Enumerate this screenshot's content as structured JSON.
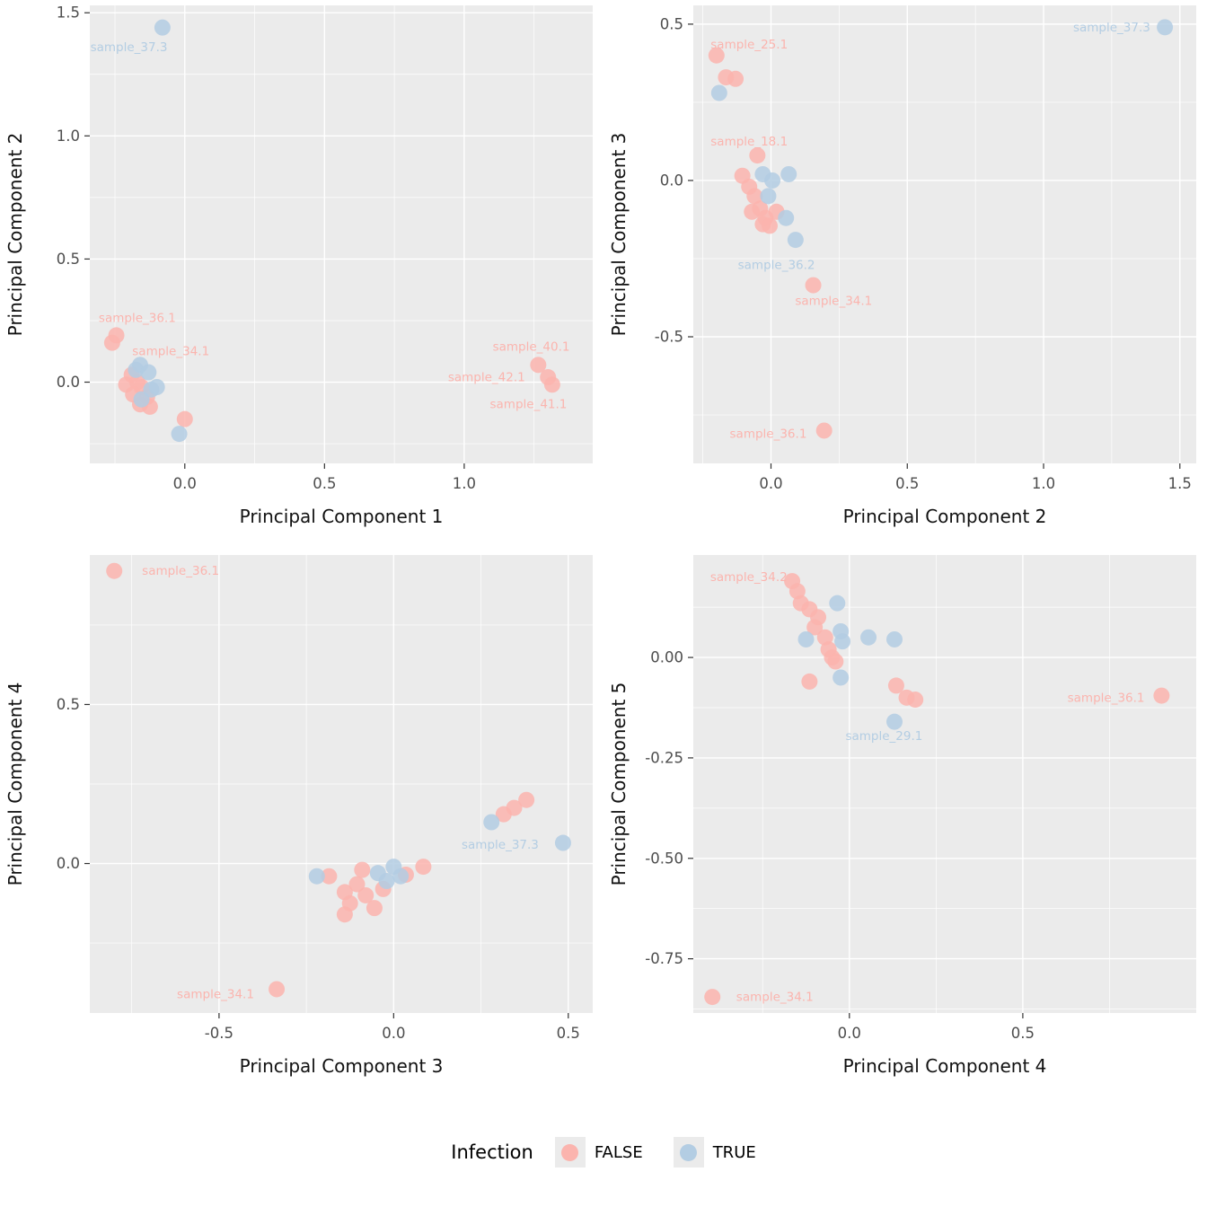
{
  "colors": {
    "false_color": "#FBB4AE",
    "true_color": "#B3CDE3",
    "panel_bg": "#EBEBEB",
    "grid": "#FFFFFF",
    "tick_mark": "#333333",
    "tick_text": "#4D4D4D",
    "title_text": "#111111"
  },
  "legend": {
    "title": "Infection",
    "items": [
      {
        "label": "FALSE",
        "value": "FALSE"
      },
      {
        "label": "TRUE",
        "value": "TRUE"
      }
    ]
  },
  "chart_data": [
    {
      "type": "scatter",
      "xlabel": "Principal Component 1",
      "ylabel": "Principal Component 2",
      "xlim": [
        -0.34,
        1.46
      ],
      "ylim": [
        -0.33,
        1.53
      ],
      "xticks": [
        0,
        0.5,
        1.0
      ],
      "xtick_labels": [
        "0.0",
        "0.5",
        "1.0"
      ],
      "yticks": [
        0,
        0.5,
        1.0,
        1.5
      ],
      "ytick_labels": [
        "0.0",
        "0.5",
        "1.0",
        "1.5"
      ],
      "legend_position": "none",
      "grid": true,
      "points": [
        [
          -0.26,
          0.16,
          "F"
        ],
        [
          -0.245,
          0.19,
          "F"
        ],
        [
          -0.19,
          0.03,
          "F"
        ],
        [
          -0.21,
          -0.01,
          "F"
        ],
        [
          -0.17,
          0.0,
          "F"
        ],
        [
          -0.155,
          -0.02,
          "F"
        ],
        [
          -0.185,
          -0.05,
          "F"
        ],
        [
          -0.135,
          -0.06,
          "F"
        ],
        [
          -0.16,
          -0.09,
          "F"
        ],
        [
          -0.125,
          -0.1,
          "F"
        ],
        [
          0.0,
          -0.15,
          "F"
        ],
        [
          1.265,
          0.07,
          "F"
        ],
        [
          1.3,
          0.02,
          "F"
        ],
        [
          1.315,
          -0.01,
          "F"
        ],
        [
          -0.08,
          1.44,
          "T"
        ],
        [
          -0.16,
          0.07,
          "T"
        ],
        [
          -0.175,
          0.05,
          "T"
        ],
        [
          -0.13,
          0.04,
          "T"
        ],
        [
          -0.12,
          -0.03,
          "T"
        ],
        [
          -0.1,
          -0.02,
          "T"
        ],
        [
          -0.155,
          -0.07,
          "T"
        ],
        [
          -0.02,
          -0.21,
          "T"
        ]
      ],
      "labels": [
        {
          "x": -0.2,
          "y": 1.36,
          "t": "sample_37.3",
          "g": "T"
        },
        {
          "x": -0.17,
          "y": 0.26,
          "t": "sample_36.1",
          "g": "F"
        },
        {
          "x": -0.05,
          "y": 0.125,
          "t": "sample_34.1",
          "g": "F"
        },
        {
          "x": 1.24,
          "y": 0.145,
          "t": "sample_40.1",
          "g": "F"
        },
        {
          "x": 1.08,
          "y": 0.02,
          "t": "sample_42.1",
          "g": "F"
        },
        {
          "x": 1.23,
          "y": -0.09,
          "t": "sample_41.1",
          "g": "F"
        }
      ]
    },
    {
      "type": "scatter",
      "xlabel": "Principal Component 2",
      "ylabel": "Principal Component 3",
      "xlim": [
        -0.285,
        1.56
      ],
      "ylim": [
        -0.905,
        0.56
      ],
      "xticks": [
        0,
        0.5,
        1.0,
        1.5
      ],
      "xtick_labels": [
        "0.0",
        "0.5",
        "1.0",
        "1.5"
      ],
      "yticks": [
        -0.5,
        0,
        0.5
      ],
      "ytick_labels": [
        "-0.5",
        "0.0",
        "0.5"
      ],
      "legend_position": "none",
      "grid": true,
      "points": [
        [
          -0.2,
          0.4,
          "F"
        ],
        [
          -0.165,
          0.33,
          "F"
        ],
        [
          -0.13,
          0.325,
          "F"
        ],
        [
          -0.05,
          0.08,
          "F"
        ],
        [
          -0.105,
          0.015,
          "F"
        ],
        [
          -0.08,
          -0.02,
          "F"
        ],
        [
          -0.07,
          -0.1,
          "F"
        ],
        [
          -0.06,
          -0.05,
          "F"
        ],
        [
          -0.04,
          -0.09,
          "F"
        ],
        [
          -0.03,
          -0.14,
          "F"
        ],
        [
          -0.02,
          -0.12,
          "F"
        ],
        [
          -0.005,
          -0.145,
          "F"
        ],
        [
          0.02,
          -0.1,
          "F"
        ],
        [
          0.155,
          -0.335,
          "F"
        ],
        [
          0.195,
          -0.8,
          "F"
        ],
        [
          1.445,
          0.49,
          "T"
        ],
        [
          -0.19,
          0.28,
          "T"
        ],
        [
          -0.03,
          0.02,
          "T"
        ],
        [
          0.005,
          0.0,
          "T"
        ],
        [
          0.065,
          0.02,
          "T"
        ],
        [
          -0.01,
          -0.05,
          "T"
        ],
        [
          0.055,
          -0.12,
          "T"
        ],
        [
          0.09,
          -0.19,
          "T"
        ]
      ],
      "labels": [
        {
          "x": -0.08,
          "y": 0.435,
          "t": "sample_25.1",
          "g": "F"
        },
        {
          "x": -0.08,
          "y": 0.125,
          "t": "sample_18.1",
          "g": "F"
        },
        {
          "x": 0.02,
          "y": -0.27,
          "t": "sample_36.2",
          "g": "T"
        },
        {
          "x": 0.23,
          "y": -0.385,
          "t": "sample_34.1",
          "g": "F"
        },
        {
          "x": -0.01,
          "y": -0.81,
          "t": "sample_36.1",
          "g": "F"
        },
        {
          "x": 1.25,
          "y": 0.49,
          "t": "sample_37.3",
          "g": "T"
        }
      ]
    },
    {
      "type": "scatter",
      "xlabel": "Principal Component 3",
      "ylabel": "Principal Component 4",
      "xlim": [
        -0.87,
        0.57
      ],
      "ylim": [
        -0.47,
        0.97
      ],
      "xticks": [
        -0.5,
        0,
        0.5
      ],
      "xtick_labels": [
        "-0.5",
        "0.0",
        "0.5"
      ],
      "yticks": [
        0,
        0.5
      ],
      "ytick_labels": [
        "0.0",
        "0.5"
      ],
      "legend_position": "none",
      "grid": true,
      "points": [
        [
          -0.8,
          0.92,
          "F"
        ],
        [
          -0.335,
          -0.395,
          "F"
        ],
        [
          -0.185,
          -0.04,
          "F"
        ],
        [
          -0.14,
          -0.09,
          "F"
        ],
        [
          -0.125,
          -0.125,
          "F"
        ],
        [
          -0.14,
          -0.16,
          "F"
        ],
        [
          -0.105,
          -0.065,
          "F"
        ],
        [
          -0.09,
          -0.02,
          "F"
        ],
        [
          -0.08,
          -0.1,
          "F"
        ],
        [
          -0.055,
          -0.14,
          "F"
        ],
        [
          -0.03,
          -0.08,
          "F"
        ],
        [
          0.035,
          -0.035,
          "F"
        ],
        [
          0.085,
          -0.01,
          "F"
        ],
        [
          0.315,
          0.155,
          "F"
        ],
        [
          0.345,
          0.175,
          "F"
        ],
        [
          0.38,
          0.2,
          "F"
        ],
        [
          -0.22,
          -0.04,
          "T"
        ],
        [
          -0.045,
          -0.03,
          "T"
        ],
        [
          0.0,
          -0.01,
          "T"
        ],
        [
          0.02,
          -0.04,
          "T"
        ],
        [
          -0.02,
          -0.055,
          "T"
        ],
        [
          0.28,
          0.13,
          "T"
        ],
        [
          0.485,
          0.065,
          "T"
        ]
      ],
      "labels": [
        {
          "x": -0.61,
          "y": 0.92,
          "t": "sample_36.1",
          "g": "F"
        },
        {
          "x": -0.51,
          "y": -0.41,
          "t": "sample_34.1",
          "g": "F"
        },
        {
          "x": 0.305,
          "y": 0.06,
          "t": "sample_37.3",
          "g": "T"
        }
      ]
    },
    {
      "type": "scatter",
      "xlabel": "Principal Component 4",
      "ylabel": "Principal Component 5",
      "xlim": [
        -0.45,
        1.0
      ],
      "ylim": [
        -0.885,
        0.255
      ],
      "xticks": [
        0,
        0.5
      ],
      "xtick_labels": [
        "0.0",
        "0.5"
      ],
      "yticks": [
        -0.75,
        -0.5,
        -0.25,
        0
      ],
      "ytick_labels": [
        "-0.75",
        "-0.50",
        "-0.25",
        "0.00"
      ],
      "legend_position": "none",
      "grid": true,
      "points": [
        [
          -0.165,
          0.19,
          "F"
        ],
        [
          -0.15,
          0.165,
          "F"
        ],
        [
          -0.14,
          0.135,
          "F"
        ],
        [
          -0.115,
          0.12,
          "F"
        ],
        [
          -0.09,
          0.1,
          "F"
        ],
        [
          -0.1,
          0.075,
          "F"
        ],
        [
          -0.07,
          0.05,
          "F"
        ],
        [
          -0.06,
          0.02,
          "F"
        ],
        [
          -0.05,
          0.0,
          "F"
        ],
        [
          -0.04,
          -0.01,
          "F"
        ],
        [
          -0.115,
          -0.06,
          "F"
        ],
        [
          0.135,
          -0.07,
          "F"
        ],
        [
          0.165,
          -0.1,
          "F"
        ],
        [
          0.19,
          -0.105,
          "F"
        ],
        [
          0.9,
          -0.095,
          "F"
        ],
        [
          -0.395,
          -0.845,
          "F"
        ],
        [
          -0.035,
          0.135,
          "T"
        ],
        [
          -0.125,
          0.045,
          "T"
        ],
        [
          -0.025,
          0.065,
          "T"
        ],
        [
          -0.02,
          0.04,
          "T"
        ],
        [
          0.055,
          0.05,
          "T"
        ],
        [
          0.13,
          0.045,
          "T"
        ],
        [
          -0.025,
          -0.05,
          "T"
        ],
        [
          0.13,
          -0.16,
          "T"
        ]
      ],
      "labels": [
        {
          "x": -0.29,
          "y": 0.2,
          "t": "sample_34.2",
          "g": "F"
        },
        {
          "x": 0.74,
          "y": -0.1,
          "t": "sample_36.1",
          "g": "F"
        },
        {
          "x": 0.1,
          "y": -0.195,
          "t": "sample_29.1",
          "g": "T"
        },
        {
          "x": -0.215,
          "y": -0.845,
          "t": "sample_34.1",
          "g": "F"
        }
      ]
    }
  ]
}
